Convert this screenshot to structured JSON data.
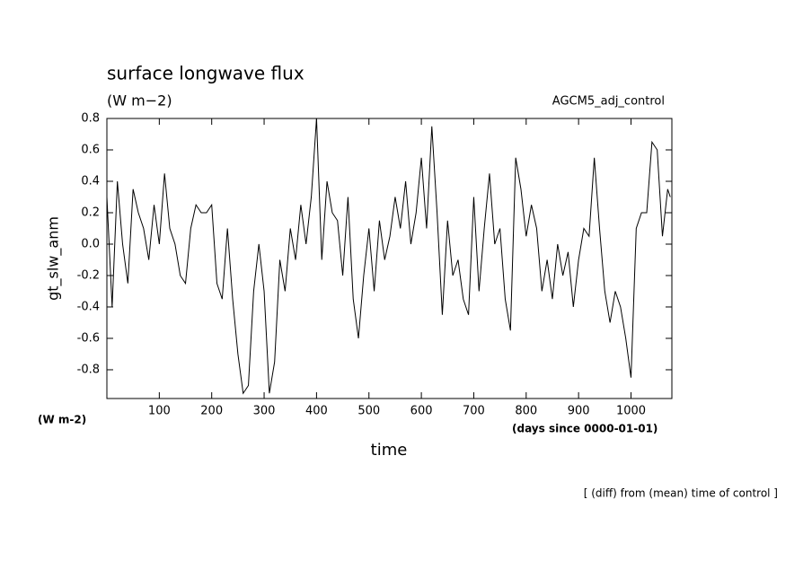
{
  "chart_data": {
    "type": "line",
    "title": "surface longwave flux",
    "subtitle": "(W m−2)",
    "annotation_right": "AGCM5_adj_control",
    "ylabel": "gt_slw_anm",
    "yunit": "(W m-2)",
    "xunit": "(days since 0000-01-01)",
    "xlabel": "time",
    "footnote": "[ (diff) from (mean) time of control ]",
    "color": "#000000",
    "x": [
      0,
      10,
      20,
      30,
      40,
      50,
      60,
      70,
      80,
      90,
      100,
      110,
      120,
      130,
      140,
      150,
      160,
      170,
      180,
      190,
      200,
      210,
      220,
      230,
      240,
      250,
      260,
      270,
      280,
      290,
      300,
      310,
      320,
      330,
      340,
      350,
      360,
      370,
      380,
      390,
      400,
      410,
      420,
      430,
      440,
      450,
      460,
      470,
      480,
      490,
      500,
      510,
      520,
      530,
      540,
      550,
      560,
      570,
      580,
      590,
      600,
      610,
      620,
      630,
      640,
      650,
      660,
      670,
      680,
      690,
      700,
      710,
      720,
      730,
      740,
      750,
      760,
      770,
      780,
      790,
      800,
      810,
      820,
      830,
      840,
      850,
      860,
      870,
      880,
      890,
      900,
      910,
      920,
      930,
      940,
      950,
      960,
      970,
      980,
      990,
      1000,
      1010,
      1020,
      1030,
      1040,
      1050,
      1060,
      1070,
      1075
    ],
    "values": [
      0.3,
      -0.4,
      0.4,
      0.0,
      -0.25,
      0.35,
      0.2,
      0.1,
      -0.1,
      0.25,
      0.0,
      0.45,
      0.1,
      0.0,
      -0.2,
      -0.25,
      0.1,
      0.25,
      0.2,
      0.2,
      0.25,
      -0.25,
      -0.35,
      0.1,
      -0.35,
      -0.7,
      -0.95,
      -0.9,
      -0.3,
      0.0,
      -0.3,
      -0.95,
      -0.75,
      -0.1,
      -0.3,
      0.1,
      -0.1,
      0.25,
      0.0,
      0.3,
      0.8,
      -0.1,
      0.4,
      0.2,
      0.15,
      -0.2,
      0.3,
      -0.35,
      -0.6,
      -0.2,
      0.1,
      -0.3,
      0.15,
      -0.1,
      0.05,
      0.3,
      0.1,
      0.4,
      0.0,
      0.2,
      0.55,
      0.1,
      0.75,
      0.2,
      -0.45,
      0.15,
      -0.2,
      -0.1,
      -0.35,
      -0.45,
      0.3,
      -0.3,
      0.1,
      0.45,
      0.0,
      0.1,
      -0.35,
      -0.55,
      0.55,
      0.35,
      0.05,
      0.25,
      0.1,
      -0.3,
      -0.1,
      -0.35,
      0.0,
      -0.2,
      -0.05,
      -0.4,
      -0.1,
      0.1,
      0.05,
      0.55,
      0.1,
      -0.3,
      -0.5,
      -0.3,
      -0.4,
      -0.6,
      -0.85,
      0.1,
      0.2,
      0.2,
      0.65,
      0.6,
      0.05,
      0.35,
      0.3
    ],
    "xlim": [
      0,
      1078
    ],
    "ylim": [
      -0.983,
      0.8
    ],
    "xticks": [
      100,
      200,
      300,
      400,
      500,
      600,
      700,
      800,
      900,
      1000
    ],
    "yticks": [
      0.8,
      0.6,
      0.4,
      0.2,
      {
        "value": 0,
        "label": "0.0"
      },
      -0.2,
      -0.4,
      -0.6,
      -0.8
    ]
  }
}
